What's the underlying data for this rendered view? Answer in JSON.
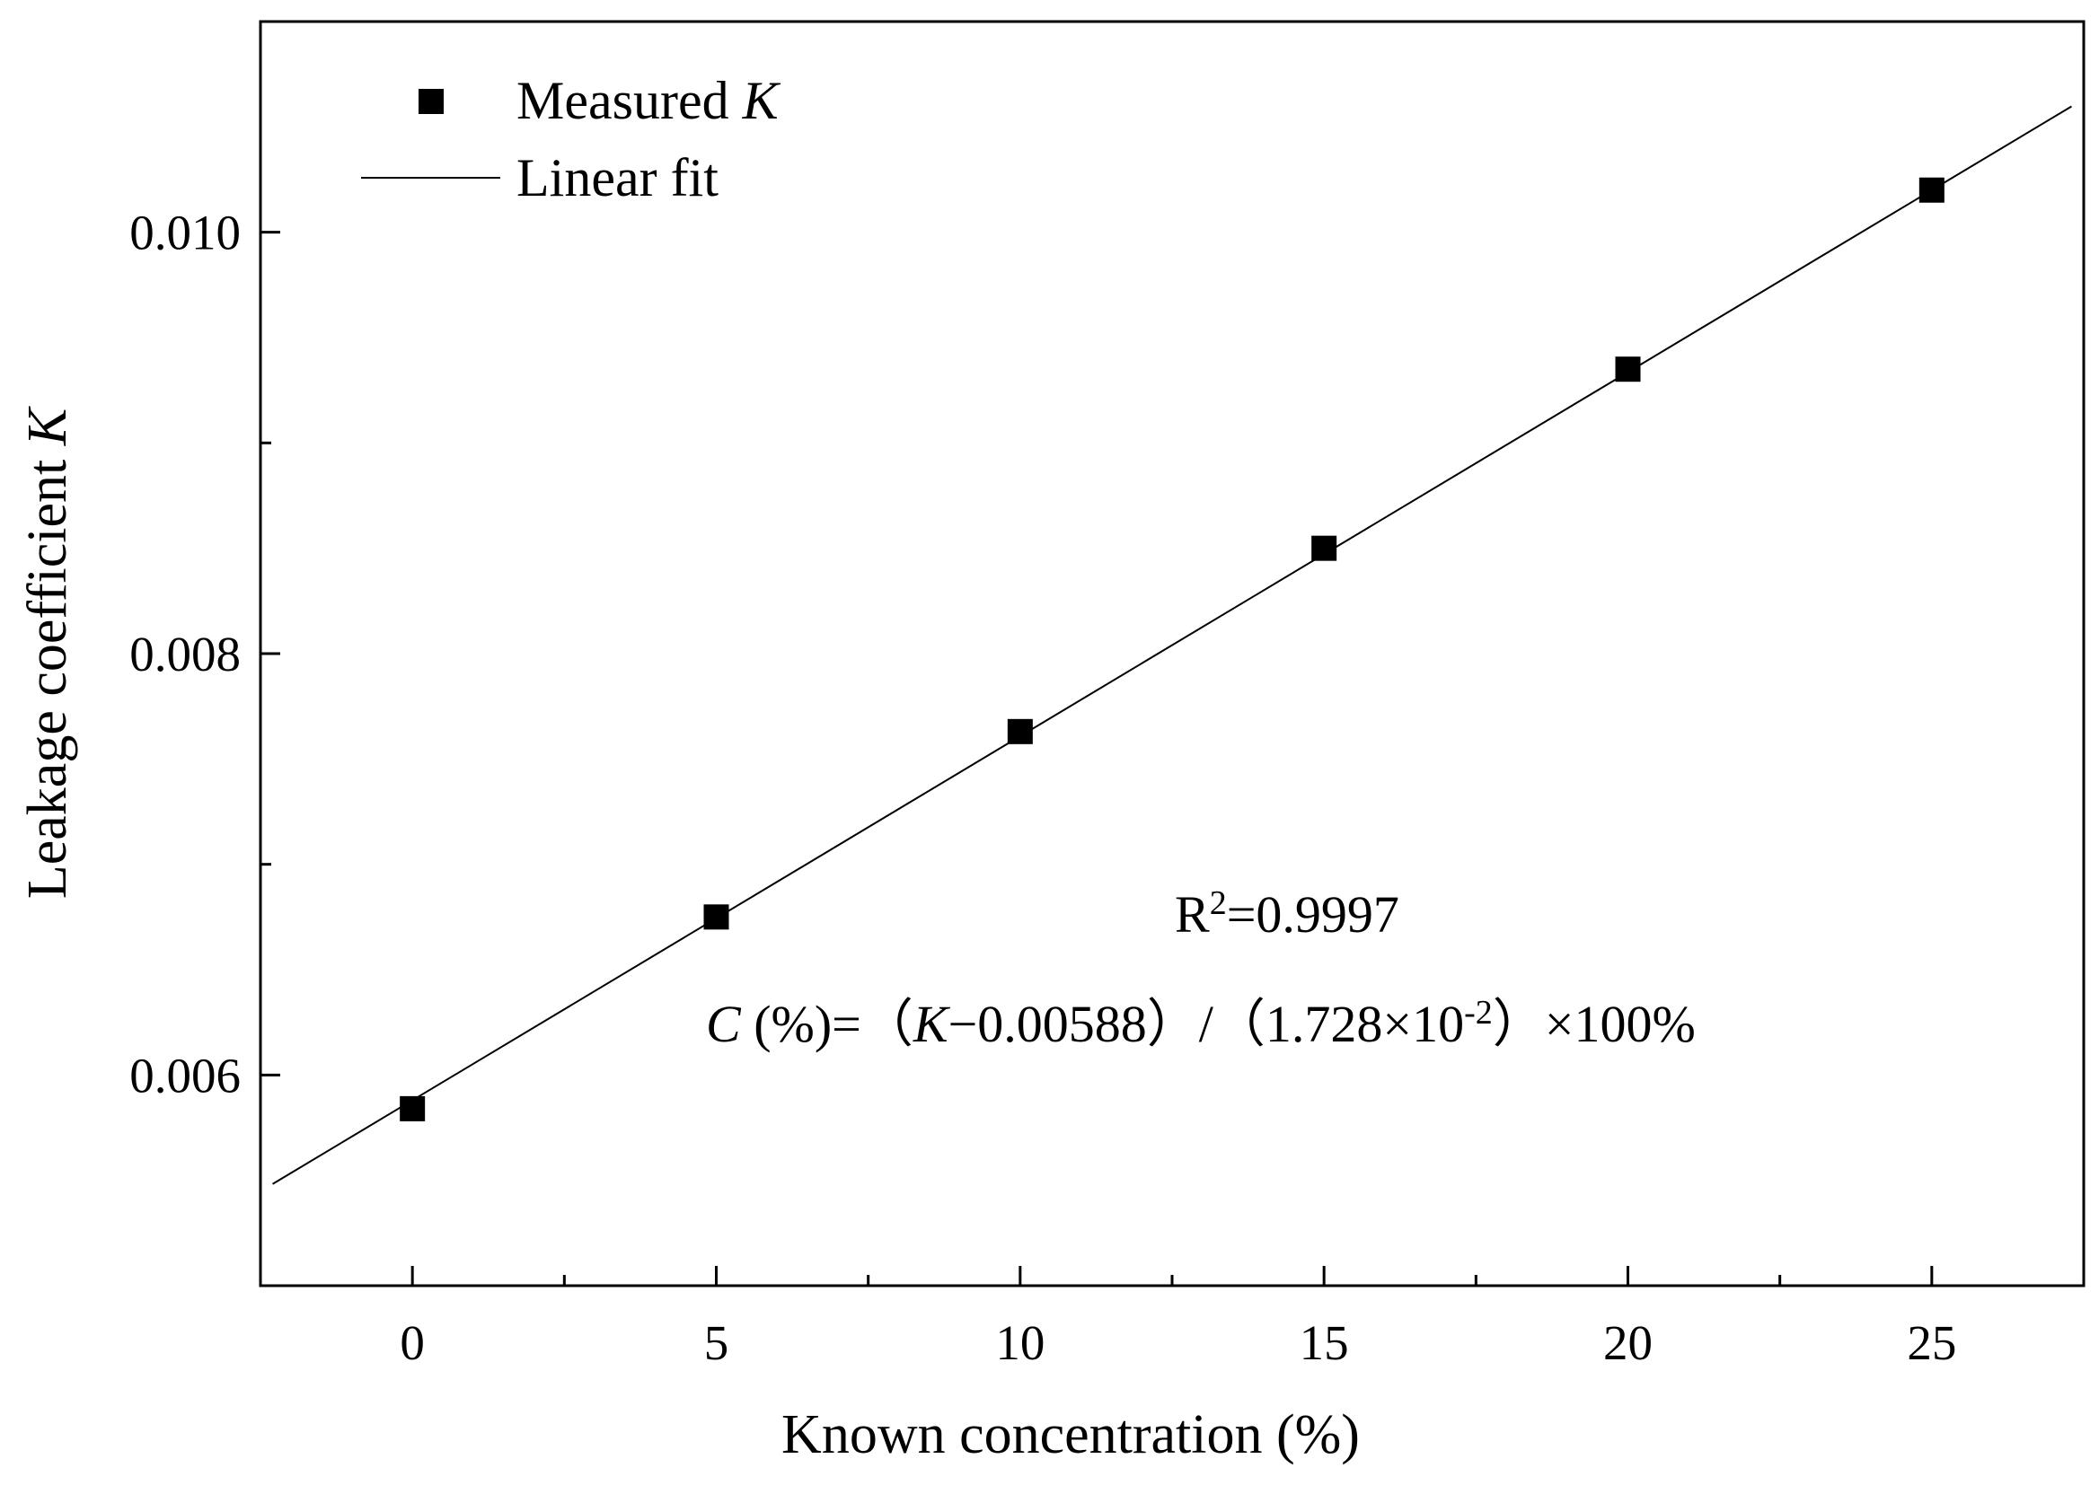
{
  "chart_data": {
    "type": "scatter",
    "title": "",
    "xlabel": "Known concentration (%)",
    "ylabel": {
      "text": "Leakage coefficient ",
      "italic": "K"
    },
    "xlim": [
      -2.5,
      27.5
    ],
    "ylim": [
      0.005,
      0.011
    ],
    "x_ticks": [
      0,
      5,
      10,
      15,
      20,
      25
    ],
    "x_tick_labels": [
      "0",
      "5",
      "10",
      "15",
      "20",
      "25"
    ],
    "x_minor_ticks": [
      2.5,
      7.5,
      12.5,
      17.5,
      22.5
    ],
    "y_ticks": [
      0.006,
      0.008,
      0.01
    ],
    "y_tick_labels": [
      "0.006",
      "0.008",
      "0.010"
    ],
    "y_minor_ticks": [
      0.007,
      0.009
    ],
    "grid": false,
    "legend_position": "top-left",
    "series": [
      {
        "name": "Measured K",
        "legend_text": "Measured ",
        "legend_italic": "K",
        "kind": "scatter",
        "marker": "square",
        "color": "#000000",
        "x": [
          0,
          5,
          10,
          15,
          20,
          25
        ],
        "y": [
          0.00584,
          0.00675,
          0.00763,
          0.0085,
          0.00935,
          0.0102
        ]
      },
      {
        "name": "Linear fit",
        "legend_text": "Linear fit",
        "kind": "line",
        "color": "#000000",
        "intercept": 0.00588,
        "slope": 0.0001728,
        "x_range": [
          -2.3,
          27.3
        ]
      }
    ],
    "annotations": {
      "r2": {
        "prefix": "R",
        "sup": "2",
        "value": "=0.9997"
      },
      "equation": {
        "var": "C",
        "part1": " (%)=（",
        "var2": "K",
        "part2": "−0.00588）/（1.728×10",
        "sup": "-2",
        "part3": "）×100%"
      }
    }
  }
}
